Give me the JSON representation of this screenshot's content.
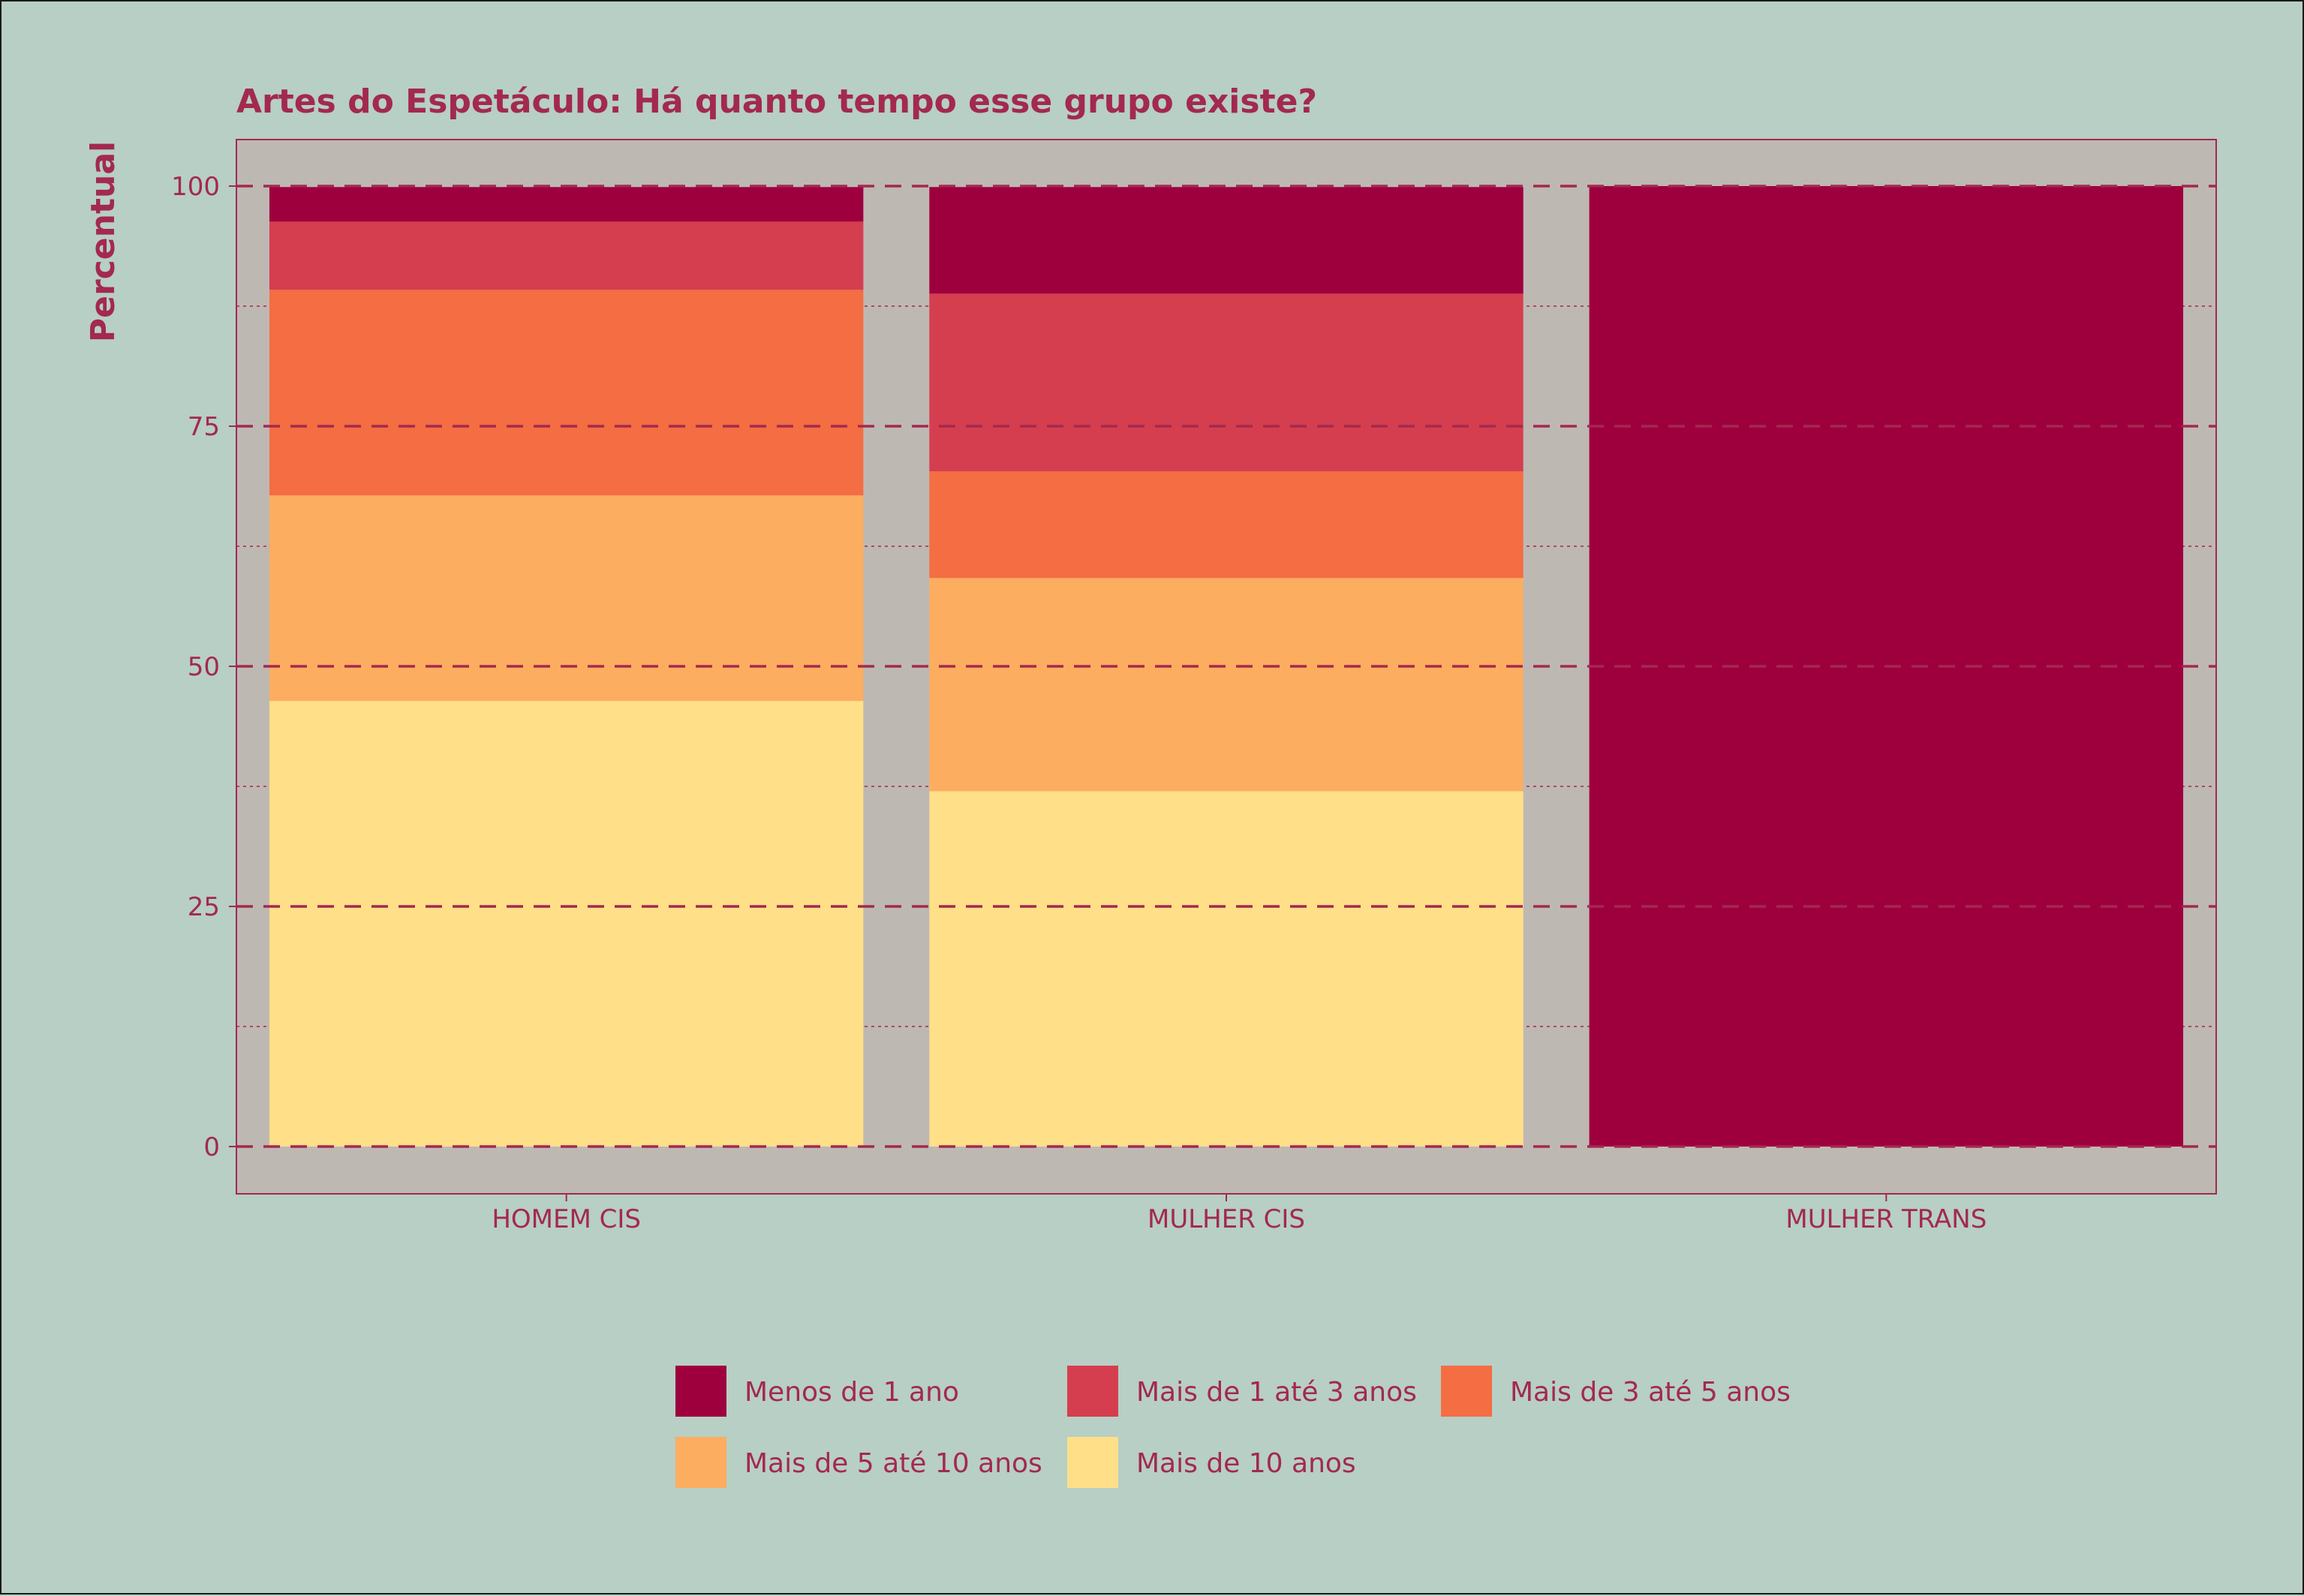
{
  "chart_data": {
    "type": "bar",
    "stacked": true,
    "title": "Artes do Espetáculo: Há quanto tempo esse grupo existe?",
    "xlabel": "",
    "ylabel": "Percentual",
    "ylim": [
      0,
      100
    ],
    "yticks": [
      0,
      25,
      50,
      75,
      100
    ],
    "grid": true,
    "legend_position": "bottom",
    "categories": [
      "HOMEM CIS",
      "MULHER CIS",
      "MULHER TRANS"
    ],
    "series": [
      {
        "name": "Mais de 10 anos",
        "color": "#ffdf88",
        "values": [
          46.4,
          37.0,
          0
        ]
      },
      {
        "name": "Mais de 5 até 10 anos",
        "color": "#fdad5f",
        "values": [
          21.4,
          22.2,
          0
        ]
      },
      {
        "name": "Mais de 3 até 5 anos",
        "color": "#f46d43",
        "values": [
          21.4,
          11.1,
          0
        ]
      },
      {
        "name": "Mais de 1 até 3 anos",
        "color": "#d53e4f",
        "values": [
          7.1,
          18.5,
          0
        ]
      },
      {
        "name": "Menos de 1 ano",
        "color": "#9e003e",
        "values": [
          3.6,
          11.1,
          100
        ]
      }
    ],
    "legend_order": [
      "Menos de 1 ano",
      "Mais de 1 até 3 anos",
      "Mais de 3 até 5 anos",
      "Mais de 5 até 10 anos",
      "Mais de 10 anos"
    ]
  },
  "colors": {
    "background": "#b7cfc5",
    "panel": "#beb8b3",
    "text": "#a3294f",
    "grid": "#a3294f"
  }
}
